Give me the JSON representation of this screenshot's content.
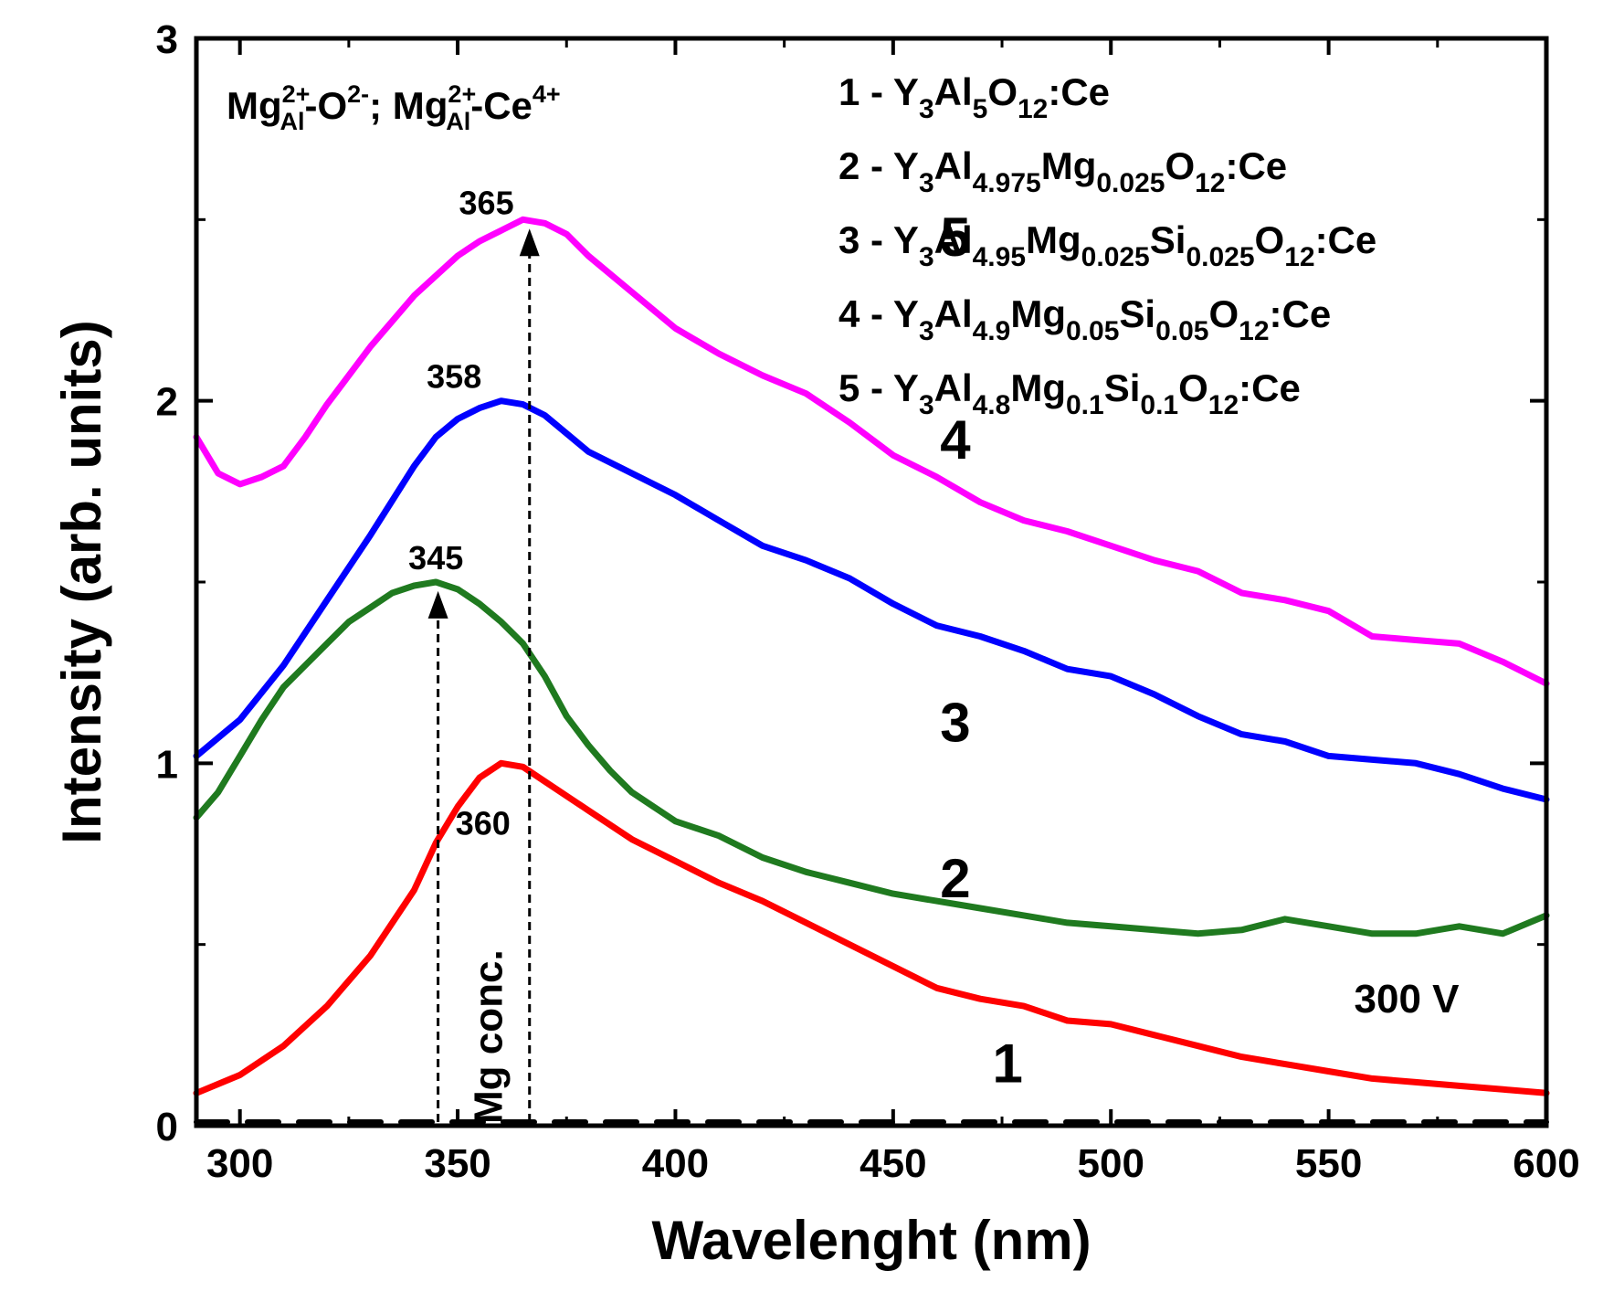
{
  "chart_data": {
    "type": "line",
    "title": "",
    "xlabel": "Wavelenght (nm)",
    "ylabel": "Intensity (arb. units)",
    "xlim": [
      290,
      600
    ],
    "ylim": [
      0,
      3
    ],
    "x_ticks": [
      300,
      350,
      400,
      450,
      500,
      550,
      600
    ],
    "y_ticks": [
      0,
      1,
      2,
      3
    ],
    "y_minor_ticks": [
      0.5,
      1.5,
      2.5
    ],
    "grid": false,
    "legend_position": "top-right",
    "annotation": {
      "prefix": "Mg",
      "sup1": "2+",
      "sub1": "Al",
      "mid1": "-O",
      "sup2": "2-",
      "mid2": "; Mg",
      "sup3": "2+",
      "sub3": "Al",
      "mid3": "-Ce",
      "sup4": "4+"
    },
    "voltage_label": "300 V",
    "arrow_label": "Mg conc.",
    "peak_labels": [
      {
        "text": "345",
        "x": 345,
        "y": 1.5
      },
      {
        "text": "358",
        "x": 358,
        "y": 2.0
      },
      {
        "text": "365",
        "x": 365,
        "y": 2.5
      },
      {
        "text": "360",
        "x": 360,
        "y": 1.0
      }
    ],
    "series": [
      {
        "name": "1",
        "color": "#000000",
        "dashed": true,
        "label_pos": {
          "x": 410,
          "y": 0.12
        },
        "legend": [
          {
            "t": "1 - Y",
            "s": "n"
          },
          {
            "t": "3",
            "s": "sub"
          },
          {
            "t": "Al",
            "s": "n"
          },
          {
            "t": "5",
            "s": "sub"
          },
          {
            "t": "O",
            "s": "n"
          },
          {
            "t": "12",
            "s": "sub"
          },
          {
            "t": ":Ce",
            "s": "n"
          }
        ],
        "points": [
          [
            290,
            0.01
          ],
          [
            600,
            0.01
          ]
        ]
      },
      {
        "name": "2",
        "color": "#ff0000",
        "dashed": false,
        "label_pos": {
          "x": 398,
          "y": 0.63
        },
        "legend": [
          {
            "t": "2 - Y",
            "s": "n"
          },
          {
            "t": "3",
            "s": "sub"
          },
          {
            "t": "Al",
            "s": "n"
          },
          {
            "t": "4.975",
            "s": "sub"
          },
          {
            "t": "Mg",
            "s": "n"
          },
          {
            "t": "0.025",
            "s": "sub"
          },
          {
            "t": "O",
            "s": "n"
          },
          {
            "t": "12",
            "s": "sub"
          },
          {
            "t": ":Ce",
            "s": "n"
          }
        ],
        "points": [
          [
            290,
            0.09
          ],
          [
            300,
            0.14
          ],
          [
            310,
            0.22
          ],
          [
            320,
            0.33
          ],
          [
            330,
            0.47
          ],
          [
            340,
            0.65
          ],
          [
            345,
            0.78
          ],
          [
            350,
            0.88
          ],
          [
            355,
            0.96
          ],
          [
            360,
            1.0
          ],
          [
            365,
            0.99
          ],
          [
            370,
            0.95
          ],
          [
            380,
            0.87
          ],
          [
            390,
            0.79
          ],
          [
            400,
            0.73
          ],
          [
            410,
            0.67
          ],
          [
            420,
            0.62
          ],
          [
            430,
            0.56
          ],
          [
            440,
            0.5
          ],
          [
            450,
            0.44
          ],
          [
            460,
            0.38
          ],
          [
            470,
            0.35
          ],
          [
            480,
            0.33
          ],
          [
            490,
            0.29
          ],
          [
            500,
            0.28
          ],
          [
            510,
            0.25
          ],
          [
            520,
            0.22
          ],
          [
            530,
            0.19
          ],
          [
            540,
            0.17
          ],
          [
            550,
            0.15
          ],
          [
            560,
            0.13
          ],
          [
            570,
            0.12
          ],
          [
            580,
            0.11
          ],
          [
            590,
            0.1
          ],
          [
            600,
            0.09
          ]
        ]
      },
      {
        "name": "3",
        "color": "#1f7a1f",
        "dashed": false,
        "label_pos": {
          "x": 398,
          "y": 1.06
        },
        "legend": [
          {
            "t": "3 - Y",
            "s": "n"
          },
          {
            "t": "3",
            "s": "sub"
          },
          {
            "t": "Al",
            "s": "n"
          },
          {
            "t": "4.95",
            "s": "sub"
          },
          {
            "t": "Mg",
            "s": "n"
          },
          {
            "t": "0.025",
            "s": "sub"
          },
          {
            "t": "Si",
            "s": "n"
          },
          {
            "t": "0.025",
            "s": "sub"
          },
          {
            "t": "O",
            "s": "n"
          },
          {
            "t": "12",
            "s": "sub"
          },
          {
            "t": ":Ce",
            "s": "n"
          }
        ],
        "points": [
          [
            290,
            0.85
          ],
          [
            295,
            0.92
          ],
          [
            300,
            1.02
          ],
          [
            305,
            1.12
          ],
          [
            310,
            1.21
          ],
          [
            315,
            1.27
          ],
          [
            320,
            1.33
          ],
          [
            325,
            1.39
          ],
          [
            330,
            1.43
          ],
          [
            335,
            1.47
          ],
          [
            340,
            1.49
          ],
          [
            345,
            1.5
          ],
          [
            350,
            1.48
          ],
          [
            355,
            1.44
          ],
          [
            360,
            1.39
          ],
          [
            365,
            1.33
          ],
          [
            370,
            1.24
          ],
          [
            375,
            1.13
          ],
          [
            380,
            1.05
          ],
          [
            385,
            0.98
          ],
          [
            390,
            0.92
          ],
          [
            395,
            0.88
          ],
          [
            400,
            0.84
          ],
          [
            410,
            0.8
          ],
          [
            420,
            0.74
          ],
          [
            430,
            0.7
          ],
          [
            440,
            0.67
          ],
          [
            450,
            0.64
          ],
          [
            460,
            0.62
          ],
          [
            470,
            0.6
          ],
          [
            480,
            0.58
          ],
          [
            490,
            0.56
          ],
          [
            500,
            0.55
          ],
          [
            510,
            0.54
          ],
          [
            520,
            0.53
          ],
          [
            530,
            0.54
          ],
          [
            540,
            0.57
          ],
          [
            550,
            0.55
          ],
          [
            560,
            0.53
          ],
          [
            570,
            0.53
          ],
          [
            580,
            0.55
          ],
          [
            590,
            0.53
          ],
          [
            600,
            0.58
          ]
        ]
      },
      {
        "name": "4",
        "color": "#0000ff",
        "dashed": false,
        "label_pos": {
          "x": 398,
          "y": 1.84
        },
        "legend": [
          {
            "t": "4 -  Y",
            "s": "n"
          },
          {
            "t": "3",
            "s": "sub"
          },
          {
            "t": "Al",
            "s": "n"
          },
          {
            "t": "4.9",
            "s": "sub"
          },
          {
            "t": "Mg",
            "s": "n"
          },
          {
            "t": "0.05",
            "s": "sub"
          },
          {
            "t": "Si",
            "s": "n"
          },
          {
            "t": "0.05",
            "s": "sub"
          },
          {
            "t": "O",
            "s": "n"
          },
          {
            "t": "12",
            "s": "sub"
          },
          {
            "t": ":Ce",
            "s": "n"
          }
        ],
        "points": [
          [
            290,
            1.02
          ],
          [
            300,
            1.12
          ],
          [
            310,
            1.27
          ],
          [
            320,
            1.45
          ],
          [
            330,
            1.63
          ],
          [
            340,
            1.82
          ],
          [
            345,
            1.9
          ],
          [
            350,
            1.95
          ],
          [
            355,
            1.98
          ],
          [
            360,
            2.0
          ],
          [
            365,
            1.99
          ],
          [
            370,
            1.96
          ],
          [
            380,
            1.86
          ],
          [
            390,
            1.8
          ],
          [
            400,
            1.74
          ],
          [
            410,
            1.67
          ],
          [
            420,
            1.6
          ],
          [
            430,
            1.56
          ],
          [
            440,
            1.51
          ],
          [
            450,
            1.44
          ],
          [
            460,
            1.38
          ],
          [
            470,
            1.35
          ],
          [
            480,
            1.31
          ],
          [
            490,
            1.26
          ],
          [
            500,
            1.24
          ],
          [
            510,
            1.19
          ],
          [
            520,
            1.13
          ],
          [
            530,
            1.08
          ],
          [
            540,
            1.06
          ],
          [
            550,
            1.02
          ],
          [
            560,
            1.01
          ],
          [
            570,
            1.0
          ],
          [
            580,
            0.97
          ],
          [
            590,
            0.93
          ],
          [
            600,
            0.9
          ]
        ]
      },
      {
        "name": "5",
        "color": "#ff00ff",
        "dashed": false,
        "label_pos": {
          "x": 398,
          "y": 2.4
        },
        "legend": [
          {
            "t": "5 - Y",
            "s": "n"
          },
          {
            "t": "3",
            "s": "sub"
          },
          {
            "t": "Al",
            "s": "n"
          },
          {
            "t": "4.8",
            "s": "sub"
          },
          {
            "t": "Mg",
            "s": "n"
          },
          {
            "t": "0.1",
            "s": "sub"
          },
          {
            "t": "Si",
            "s": "n"
          },
          {
            "t": "0.1",
            "s": "sub"
          },
          {
            "t": "O",
            "s": "n"
          },
          {
            "t": "12",
            "s": "sub"
          },
          {
            "t": ":Ce",
            "s": "n"
          }
        ],
        "points": [
          [
            290,
            1.9
          ],
          [
            295,
            1.8
          ],
          [
            300,
            1.77
          ],
          [
            305,
            1.79
          ],
          [
            310,
            1.82
          ],
          [
            315,
            1.9
          ],
          [
            320,
            1.99
          ],
          [
            325,
            2.07
          ],
          [
            330,
            2.15
          ],
          [
            340,
            2.29
          ],
          [
            350,
            2.4
          ],
          [
            355,
            2.44
          ],
          [
            360,
            2.47
          ],
          [
            365,
            2.5
          ],
          [
            370,
            2.49
          ],
          [
            375,
            2.46
          ],
          [
            380,
            2.4
          ],
          [
            390,
            2.3
          ],
          [
            400,
            2.2
          ],
          [
            410,
            2.13
          ],
          [
            420,
            2.07
          ],
          [
            430,
            2.02
          ],
          [
            440,
            1.94
          ],
          [
            450,
            1.85
          ],
          [
            460,
            1.79
          ],
          [
            470,
            1.72
          ],
          [
            480,
            1.67
          ],
          [
            490,
            1.64
          ],
          [
            500,
            1.6
          ],
          [
            510,
            1.56
          ],
          [
            520,
            1.53
          ],
          [
            530,
            1.47
          ],
          [
            540,
            1.45
          ],
          [
            550,
            1.42
          ],
          [
            560,
            1.35
          ],
          [
            570,
            1.34
          ],
          [
            580,
            1.33
          ],
          [
            590,
            1.28
          ],
          [
            600,
            1.22
          ]
        ]
      }
    ]
  }
}
